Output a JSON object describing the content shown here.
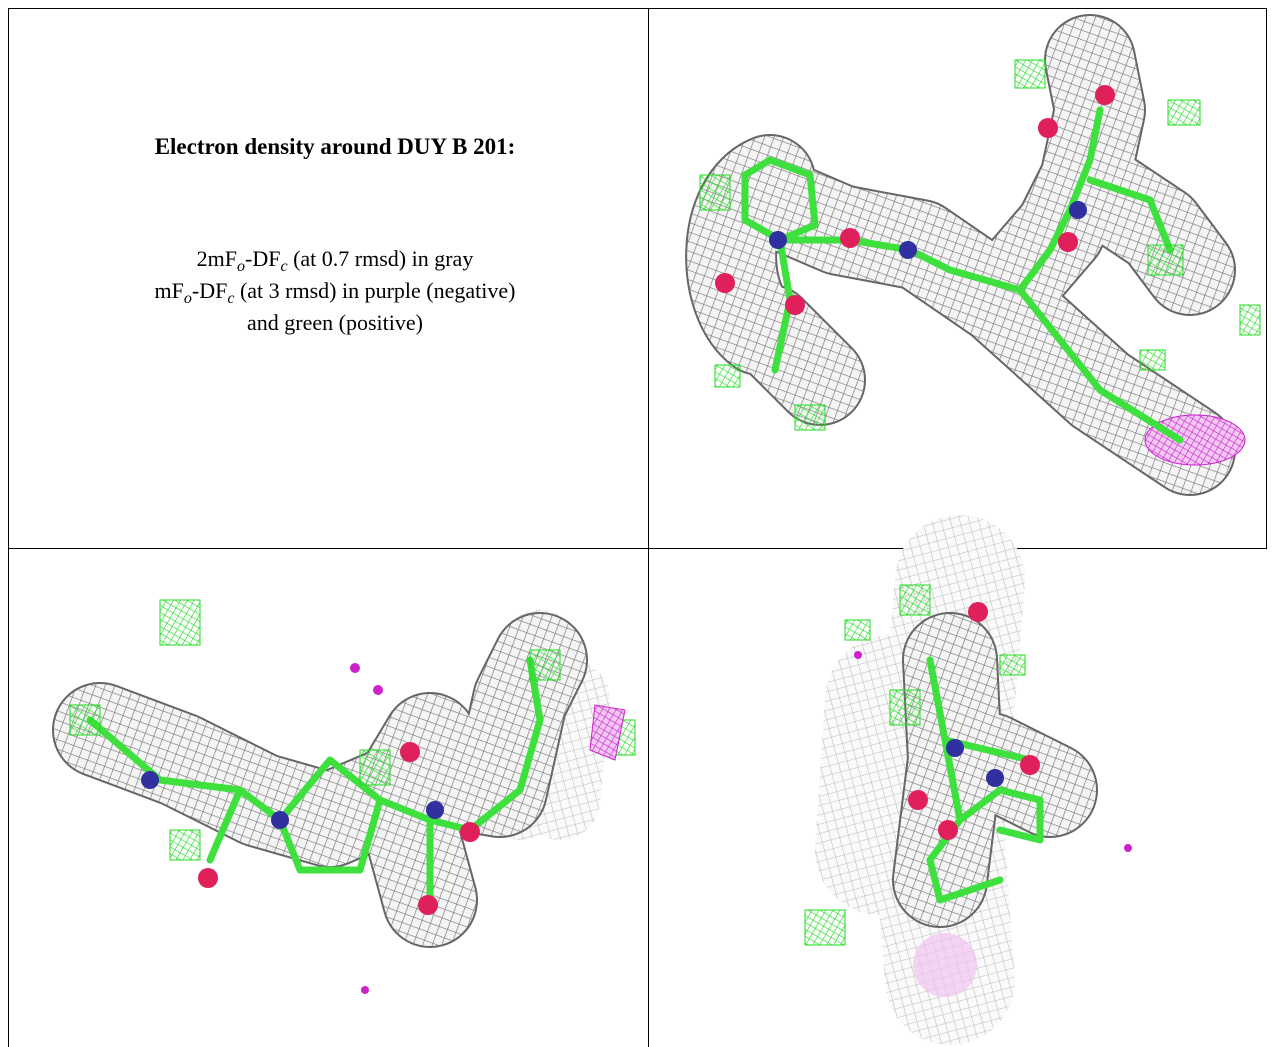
{
  "figure": {
    "title": "Electron density around DUY B 201:",
    "legend_lines": [
      [
        {
          "text": "2mF"
        },
        {
          "text": "o",
          "subscript": true
        },
        {
          "text": "-DF"
        },
        {
          "text": "c",
          "subscript": true
        },
        {
          "text": " (at 0.7 rmsd) in gray"
        }
      ],
      [
        {
          "text": "mF"
        },
        {
          "text": "o",
          "subscript": true
        },
        {
          "text": "-DF"
        },
        {
          "text": "c",
          "subscript": true
        },
        {
          "text": " (at 3 rmsd) in purple (negative)"
        }
      ],
      [
        {
          "text": "and green (positive)"
        }
      ]
    ]
  }
}
